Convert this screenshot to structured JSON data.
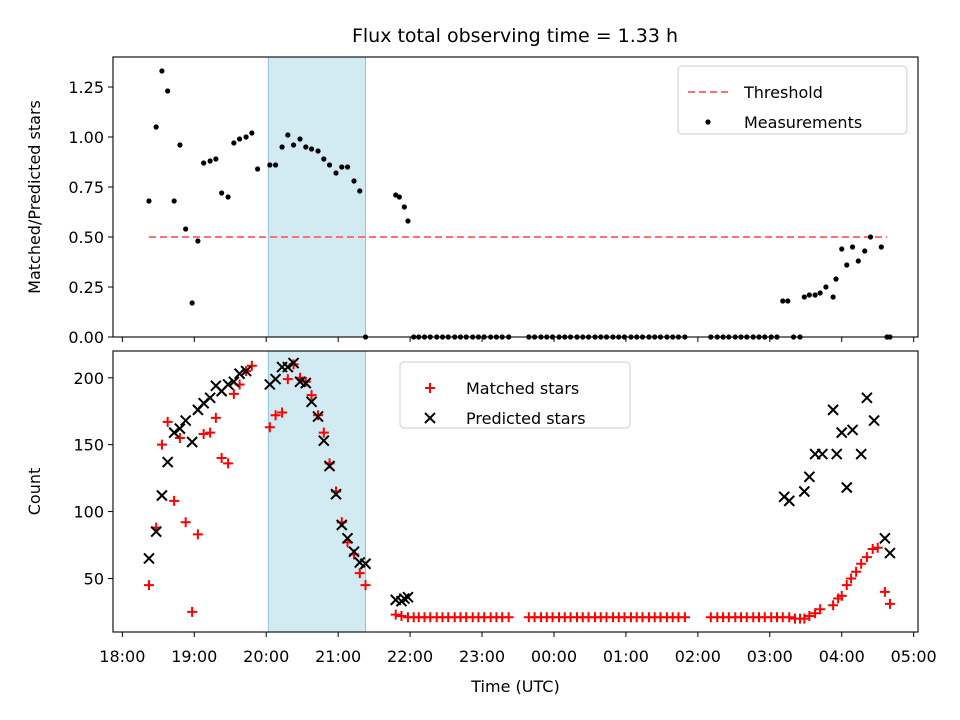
{
  "figure": {
    "title": "Flux total observing time = 1.33 h"
  },
  "chart_data": [
    {
      "type": "scatter",
      "title": "Flux total observing time = 1.33 h",
      "xlabel": "",
      "ylabel": "Matched/Predicted stars",
      "x_unit": "hours since 18:00 UTC",
      "xlim": [
        -0.13,
        11.06
      ],
      "ylim": [
        0.0,
        1.4
      ],
      "yticks": [
        0.0,
        0.25,
        0.5,
        0.75,
        1.0,
        1.25
      ],
      "ytick_labels": [
        "0.00",
        "0.25",
        "0.50",
        "0.75",
        "1.00",
        "1.25"
      ],
      "shaded_span": [
        2.03,
        3.38
      ],
      "shaded_color": "#add8e6",
      "legend": {
        "placement": "upper right",
        "entries": [
          "Threshold",
          "Measurements"
        ]
      },
      "series": [
        {
          "name": "Threshold",
          "kind": "dashed-line",
          "color": "#ff7070",
          "x": [
            0.37,
            10.63
          ],
          "y": [
            0.5,
            0.5
          ]
        },
        {
          "name": "Measurements",
          "kind": "points",
          "color": "#000000",
          "x": [
            0.37,
            0.47,
            0.55,
            0.63,
            0.72,
            0.8,
            0.88,
            0.97,
            1.05,
            1.13,
            1.22,
            1.3,
            1.38,
            1.47,
            1.55,
            1.63,
            1.72,
            1.8,
            1.88,
            2.05,
            2.13,
            2.22,
            2.3,
            2.38,
            2.47,
            2.55,
            2.63,
            2.72,
            2.8,
            2.88,
            2.97,
            3.05,
            3.13,
            3.22,
            3.3,
            3.38,
            3.8,
            3.85,
            3.92,
            3.97,
            4.05,
            4.12,
            4.2,
            4.28,
            4.37,
            4.45,
            4.53,
            4.62,
            4.7,
            4.78,
            4.87,
            4.95,
            5.03,
            5.12,
            5.2,
            5.28,
            5.37,
            5.65,
            5.73,
            5.82,
            5.9,
            5.98,
            6.07,
            6.15,
            6.23,
            6.32,
            6.4,
            6.48,
            6.57,
            6.65,
            6.73,
            6.82,
            6.9,
            6.98,
            7.07,
            7.15,
            7.23,
            7.32,
            7.4,
            7.48,
            7.57,
            7.65,
            7.73,
            7.82,
            8.18,
            8.27,
            8.35,
            8.43,
            8.52,
            8.6,
            8.68,
            8.77,
            8.85,
            8.93,
            9.02,
            9.1,
            9.18,
            9.25,
            9.33,
            9.42,
            9.48,
            9.55,
            9.63,
            9.7,
            9.78,
            9.88,
            9.92,
            10.0,
            10.07,
            10.15,
            10.23,
            10.32,
            10.4,
            10.55,
            10.63,
            10.67
          ],
          "y": [
            0.68,
            1.05,
            1.33,
            1.23,
            0.68,
            0.96,
            0.54,
            0.17,
            0.48,
            0.87,
            0.88,
            0.89,
            0.72,
            0.7,
            0.97,
            0.99,
            1.0,
            1.02,
            0.84,
            0.86,
            0.86,
            0.95,
            1.01,
            0.96,
            0.99,
            0.95,
            0.94,
            0.93,
            0.89,
            0.86,
            0.82,
            0.85,
            0.85,
            0.78,
            0.73,
            0.0,
            0.71,
            0.7,
            0.65,
            0.58,
            0.0,
            0.0,
            0.0,
            0.0,
            0.0,
            0.0,
            0.0,
            0.0,
            0.0,
            0.0,
            0.0,
            0.0,
            0.0,
            0.0,
            0.0,
            0.0,
            0.0,
            0.0,
            0.0,
            0.0,
            0.0,
            0.0,
            0.0,
            0.0,
            0.0,
            0.0,
            0.0,
            0.0,
            0.0,
            0.0,
            0.0,
            0.0,
            0.0,
            0.0,
            0.0,
            0.0,
            0.0,
            0.0,
            0.0,
            0.0,
            0.0,
            0.0,
            0.0,
            0.0,
            0.0,
            0.0,
            0.0,
            0.0,
            0.0,
            0.0,
            0.0,
            0.0,
            0.0,
            0.0,
            0.0,
            0.0,
            0.18,
            0.18,
            0.0,
            0.0,
            0.2,
            0.21,
            0.21,
            0.22,
            0.25,
            0.2,
            0.29,
            0.44,
            0.36,
            0.45,
            0.38,
            0.43,
            0.5,
            0.45,
            0.0,
            0.0
          ]
        }
      ]
    },
    {
      "type": "scatter",
      "title": "",
      "xlabel": "Time (UTC)",
      "ylabel": "Count",
      "x_unit": "hours since 18:00 UTC",
      "xlim": [
        -0.13,
        11.06
      ],
      "ylim": [
        10,
        220
      ],
      "yticks": [
        50,
        100,
        150,
        200
      ],
      "ytick_labels": [
        "50",
        "100",
        "150",
        "200"
      ],
      "xticks": [
        0,
        1,
        2,
        3,
        4,
        5,
        6,
        7,
        8,
        9,
        10,
        11
      ],
      "xtick_labels": [
        "18:00",
        "19:00",
        "20:00",
        "21:00",
        "22:00",
        "23:00",
        "00:00",
        "01:00",
        "02:00",
        "03:00",
        "04:00",
        "05:00"
      ],
      "shaded_span": [
        2.03,
        3.38
      ],
      "shaded_color": "#add8e6",
      "legend": {
        "placement": "upper center",
        "entries": [
          "Matched stars",
          "Predicted stars"
        ]
      },
      "series": [
        {
          "name": "Matched stars",
          "kind": "plus",
          "color": "#ff0000",
          "x": [
            0.37,
            0.47,
            0.55,
            0.63,
            0.72,
            0.8,
            0.88,
            0.97,
            1.05,
            1.13,
            1.22,
            1.3,
            1.38,
            1.47,
            1.55,
            1.63,
            1.72,
            1.8,
            2.05,
            2.13,
            2.22,
            2.3,
            2.38,
            2.47,
            2.55,
            2.63,
            2.72,
            2.8,
            2.88,
            2.97,
            3.05,
            3.13,
            3.22,
            3.3,
            3.38,
            3.8,
            3.88,
            3.97,
            4.05,
            4.12,
            4.2,
            4.28,
            4.37,
            4.45,
            4.53,
            4.62,
            4.7,
            4.78,
            4.87,
            4.95,
            5.03,
            5.12,
            5.2,
            5.28,
            5.37,
            5.65,
            5.73,
            5.82,
            5.9,
            5.98,
            6.07,
            6.15,
            6.23,
            6.32,
            6.4,
            6.48,
            6.57,
            6.65,
            6.73,
            6.82,
            6.9,
            6.98,
            7.07,
            7.15,
            7.23,
            7.32,
            7.4,
            7.48,
            7.57,
            7.65,
            7.73,
            7.82,
            8.18,
            8.27,
            8.35,
            8.43,
            8.52,
            8.6,
            8.68,
            8.77,
            8.85,
            8.93,
            9.02,
            9.1,
            9.18,
            9.27,
            9.35,
            9.42,
            9.48,
            9.55,
            9.63,
            9.7,
            9.88,
            9.95,
            10.0,
            10.07,
            10.13,
            10.2,
            10.27,
            10.35,
            10.43,
            10.5,
            10.6,
            10.67
          ],
          "y": [
            45,
            88,
            150,
            167,
            108,
            155,
            92,
            25,
            83,
            158,
            159,
            170,
            140,
            136,
            188,
            195,
            205,
            209,
            163,
            172,
            174,
            199,
            210,
            200,
            197,
            187,
            172,
            159,
            136,
            115,
            92,
            77,
            68,
            54,
            45,
            23,
            22,
            21,
            21,
            21,
            21,
            21,
            21,
            21,
            21,
            21,
            21,
            21,
            21,
            21,
            21,
            21,
            21,
            21,
            21,
            21,
            21,
            21,
            21,
            21,
            21,
            21,
            21,
            21,
            21,
            21,
            21,
            21,
            21,
            21,
            21,
            21,
            21,
            21,
            21,
            21,
            21,
            21,
            21,
            21,
            21,
            21,
            21,
            21,
            21,
            21,
            21,
            21,
            21,
            21,
            21,
            21,
            21,
            21,
            21,
            21,
            20,
            20,
            20,
            22,
            24,
            27,
            30,
            35,
            37,
            45,
            50,
            55,
            61,
            66,
            72,
            73,
            40,
            31
          ]
        },
        {
          "name": "Predicted stars",
          "kind": "x",
          "color": "#000000",
          "x": [
            0.37,
            0.47,
            0.55,
            0.63,
            0.72,
            0.8,
            0.88,
            0.97,
            1.05,
            1.13,
            1.22,
            1.3,
            1.38,
            1.47,
            1.55,
            1.63,
            1.72,
            2.05,
            2.13,
            2.22,
            2.3,
            2.38,
            2.47,
            2.55,
            2.63,
            2.72,
            2.8,
            2.88,
            2.97,
            3.05,
            3.13,
            3.22,
            3.3,
            3.38,
            3.8,
            3.88,
            3.92,
            3.97,
            9.2,
            9.27,
            9.48,
            9.55,
            9.63,
            9.73,
            9.88,
            9.93,
            10.0,
            10.07,
            10.15,
            10.27,
            10.35,
            10.45,
            10.6,
            10.67
          ],
          "y": [
            65,
            85,
            112,
            137,
            159,
            162,
            168,
            152,
            176,
            181,
            185,
            194,
            190,
            195,
            197,
            203,
            205,
            195,
            199,
            208,
            208,
            211,
            197,
            196,
            182,
            171,
            153,
            134,
            113,
            90,
            80,
            70,
            62,
            61,
            34,
            33,
            35,
            36,
            111,
            108,
            115,
            126,
            143,
            143,
            176,
            143,
            159,
            118,
            161,
            143,
            185,
            168,
            80,
            69
          ]
        }
      ]
    }
  ]
}
